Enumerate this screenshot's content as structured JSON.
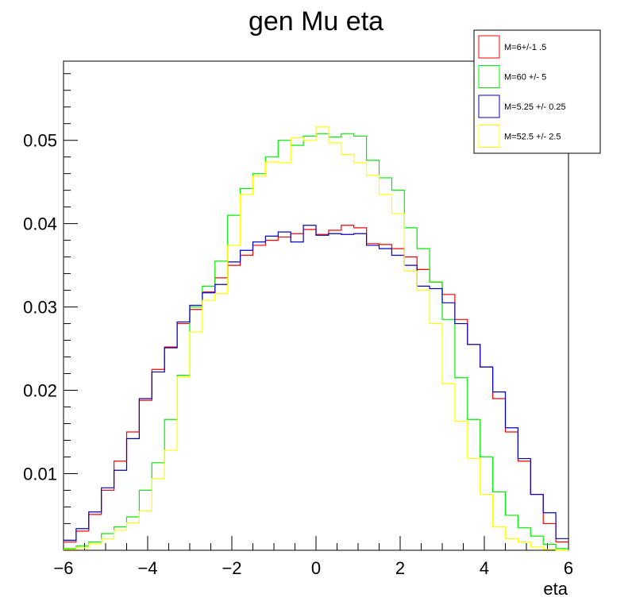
{
  "chart_data": {
    "type": "line",
    "title": "gen Mu eta",
    "xlabel": "eta",
    "ylabel": "",
    "xlim": [
      -6,
      6
    ],
    "ylim": [
      0.0008,
      0.0595
    ],
    "x_ticks": [
      -6,
      -4,
      -2,
      0,
      2,
      4,
      6
    ],
    "x_tick_labels": [
      "−6",
      "−4",
      "−2",
      "0",
      "2",
      "4",
      "6"
    ],
    "y_ticks": [
      0.01,
      0.02,
      0.03,
      0.04,
      0.05
    ],
    "y_tick_labels": [
      "0.01",
      "0.02",
      "0.03",
      "0.04",
      "0.05"
    ],
    "bin_edges": [
      -6,
      -5.7,
      -5.4,
      -5.1,
      -4.8,
      -4.5,
      -4.2,
      -3.9,
      -3.6,
      -3.3,
      -3.0,
      -2.7,
      -2.4,
      -2.1,
      -1.8,
      -1.5,
      -1.2,
      -0.9,
      -0.6,
      -0.3,
      0.0,
      0.3,
      0.6,
      0.9,
      1.2,
      1.5,
      1.8,
      2.1,
      2.4,
      2.7,
      3.0,
      3.3,
      3.6,
      3.9,
      4.2,
      4.5,
      4.8,
      5.1,
      5.4,
      5.7,
      6.0
    ],
    "legend_position": "top-right",
    "series": [
      {
        "name": "M=6+/-1 .5",
        "color": "#ff0000",
        "values": [
          0.0018,
          0.0031,
          0.0051,
          0.008,
          0.0115,
          0.015,
          0.0188,
          0.0225,
          0.0252,
          0.028,
          0.0297,
          0.0318,
          0.0335,
          0.035,
          0.0362,
          0.0374,
          0.038,
          0.0384,
          0.0388,
          0.0393,
          0.0387,
          0.0392,
          0.0398,
          0.0395,
          0.0376,
          0.0375,
          0.037,
          0.036,
          0.0345,
          0.033,
          0.0315,
          0.0285,
          0.0255,
          0.0228,
          0.019,
          0.015,
          0.0115,
          0.0075,
          0.004,
          0.0018
        ]
      },
      {
        "name": "M=60 +/- 5",
        "color": "#00ee00",
        "values": [
          0.001,
          0.0013,
          0.0018,
          0.0028,
          0.0036,
          0.0048,
          0.008,
          0.0113,
          0.0165,
          0.0218,
          0.03,
          0.0325,
          0.0355,
          0.041,
          0.0442,
          0.046,
          0.048,
          0.05,
          0.0494,
          0.0505,
          0.0508,
          0.0504,
          0.0508,
          0.0505,
          0.0476,
          0.0455,
          0.044,
          0.0395,
          0.037,
          0.033,
          0.0285,
          0.0215,
          0.0165,
          0.012,
          0.0078,
          0.005,
          0.0035,
          0.0025,
          0.0015,
          0.001
        ]
      },
      {
        "name": "M=5.25 +/- 0.25",
        "color": "#0000cc",
        "values": [
          0.002,
          0.0034,
          0.0054,
          0.0083,
          0.0104,
          0.0142,
          0.019,
          0.0222,
          0.0251,
          0.0282,
          0.0302,
          0.0317,
          0.0327,
          0.0354,
          0.0368,
          0.0378,
          0.0385,
          0.039,
          0.0378,
          0.0398,
          0.0386,
          0.0388,
          0.0387,
          0.0388,
          0.0374,
          0.037,
          0.0362,
          0.035,
          0.0325,
          0.0322,
          0.0305,
          0.028,
          0.0255,
          0.0228,
          0.0198,
          0.0155,
          0.0118,
          0.0075,
          0.0053,
          0.0022
        ]
      },
      {
        "name": "M=52.5 +/- 2.5",
        "color": "#ffff00",
        "values": [
          0.0009,
          0.0011,
          0.0016,
          0.0022,
          0.0032,
          0.0041,
          0.0055,
          0.0094,
          0.0128,
          0.0216,
          0.027,
          0.0308,
          0.0316,
          0.0374,
          0.0435,
          0.0457,
          0.0474,
          0.0473,
          0.0503,
          0.05,
          0.0516,
          0.0497,
          0.0483,
          0.0473,
          0.0458,
          0.0435,
          0.0412,
          0.0343,
          0.032,
          0.028,
          0.0208,
          0.0163,
          0.0118,
          0.0075,
          0.0036,
          0.0022,
          0.0018,
          0.0012,
          0.0009,
          0.0008
        ]
      }
    ]
  }
}
